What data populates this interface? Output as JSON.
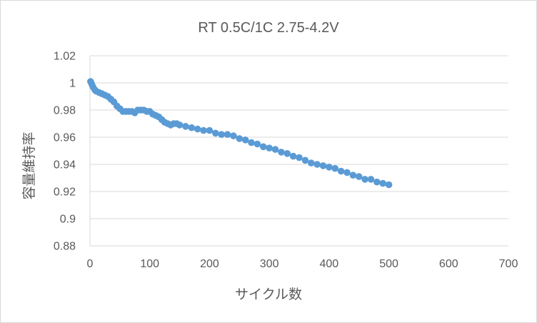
{
  "chart_data": {
    "type": "scatter",
    "title": "RT 0.5C/1C 2.75-4.2V",
    "xlabel": "サイクル数",
    "ylabel": "容量維持率",
    "xlim": [
      0,
      700
    ],
    "ylim": [
      0.88,
      1.02
    ],
    "x_ticks": [
      "0",
      "100",
      "200",
      "300",
      "400",
      "500",
      "600",
      "700"
    ],
    "y_ticks": [
      "0.88",
      "0.9",
      "0.92",
      "0.94",
      "0.96",
      "0.98",
      "1",
      "1.02"
    ],
    "grid": "horizontal",
    "marker_color": "#5b9bd5",
    "series": [
      {
        "x": [
          1,
          3,
          5,
          8,
          10,
          15,
          20,
          25,
          30,
          35,
          40,
          45,
          50,
          55,
          60,
          65,
          70,
          75,
          80,
          85,
          90,
          95,
          100,
          105,
          110,
          115,
          120,
          125,
          130,
          135,
          140,
          145,
          150,
          160,
          170,
          180,
          190,
          200,
          210,
          220,
          230,
          240,
          250,
          260,
          270,
          280,
          290,
          300,
          310,
          320,
          330,
          340,
          350,
          360,
          370,
          380,
          390,
          400,
          410,
          420,
          430,
          440,
          450,
          460,
          470,
          480,
          490,
          500
        ],
        "y": [
          1.001,
          0.999,
          0.997,
          0.995,
          0.994,
          0.993,
          0.992,
          0.991,
          0.99,
          0.988,
          0.986,
          0.983,
          0.981,
          0.979,
          0.979,
          0.979,
          0.979,
          0.978,
          0.98,
          0.98,
          0.98,
          0.979,
          0.979,
          0.977,
          0.976,
          0.975,
          0.973,
          0.971,
          0.97,
          0.969,
          0.97,
          0.97,
          0.969,
          0.968,
          0.967,
          0.966,
          0.965,
          0.965,
          0.963,
          0.962,
          0.962,
          0.961,
          0.959,
          0.958,
          0.956,
          0.955,
          0.953,
          0.952,
          0.951,
          0.949,
          0.948,
          0.946,
          0.945,
          0.943,
          0.941,
          0.94,
          0.939,
          0.938,
          0.937,
          0.935,
          0.934,
          0.932,
          0.931,
          0.929,
          0.929,
          0.927,
          0.926,
          0.925
        ]
      }
    ]
  }
}
